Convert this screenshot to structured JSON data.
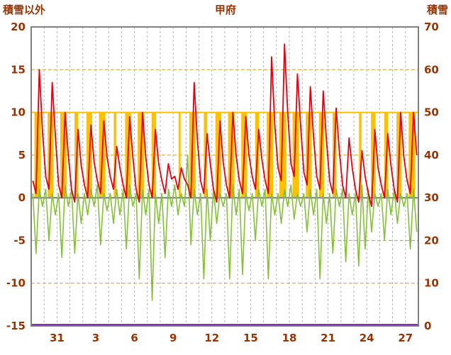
{
  "title": "甲府",
  "left_axis_label": "積雪以外",
  "right_axis_label": "積雪",
  "chart_data": {
    "type": "line",
    "title": "甲府",
    "left_axis": {
      "label": "積雪以外",
      "min": -15,
      "max": 20,
      "ticks": [
        20,
        15,
        10,
        5,
        0,
        -5,
        -10,
        -15
      ]
    },
    "right_axis": {
      "label": "積雪",
      "min": 0,
      "max": 70,
      "ticks": [
        70,
        60,
        50,
        40,
        30,
        20,
        10,
        0
      ]
    },
    "x_axis": {
      "days": 30,
      "tick_day_indices": [
        2,
        5,
        8,
        11,
        14,
        17,
        20,
        23,
        26,
        29
      ],
      "tick_labels": [
        "31",
        "3",
        "6",
        "9",
        "12",
        "15",
        "18",
        "21",
        "24",
        "27"
      ]
    },
    "grid": {
      "h_color": "#c9a227",
      "v_color": "#b3b3b3",
      "zero_color": "#8f8f8f",
      "border_color": "#808080",
      "text_color": "#993300",
      "ten_line_color": "#ffc000"
    },
    "series": {
      "red_line": {
        "color": "#e60012",
        "samples_per_day": 4,
        "values": [
          2,
          0.5,
          15,
          7.8,
          2.5,
          1,
          13.5,
          7.2,
          1.5,
          0,
          10,
          5,
          1,
          -0.5,
          8,
          3.8,
          1.5,
          0,
          8.5,
          4.2,
          2,
          0.5,
          9,
          4.8,
          2.5,
          1,
          6,
          3.5,
          1.5,
          0,
          9.5,
          4.8,
          1,
          -0.5,
          10,
          4.8,
          1.5,
          0,
          8,
          4,
          2,
          0.5,
          4,
          2.2,
          2.5,
          1,
          3.5,
          2.2,
          1.5,
          0,
          13.5,
          6.8,
          2,
          0.5,
          7.5,
          4,
          1,
          -0.5,
          9,
          4.2,
          1.5,
          0,
          10,
          5,
          2,
          0.5,
          9.5,
          5,
          2.5,
          1,
          8,
          4.5,
          2,
          0.5,
          16.5,
          8.5,
          3.5,
          2,
          18,
          10,
          4,
          2.5,
          14.5,
          8.5,
          3,
          1.5,
          13,
          7.2,
          2.5,
          1,
          12.5,
          6.8,
          2,
          0.5,
          10.5,
          5.5,
          1.5,
          0,
          7,
          3.5,
          1,
          -0.5,
          5.5,
          2.5,
          0.5,
          -1,
          8,
          3.5,
          1.5,
          0,
          7.5,
          3.8,
          1,
          -0.5,
          10,
          4.8,
          2,
          0.5,
          10,
          5
        ]
      },
      "green_line": {
        "color": "#85c037",
        "samples_per_day": 4,
        "values": [
          0.5,
          -6.5,
          1,
          -1,
          1,
          -5,
          0.5,
          -2,
          0.5,
          -7,
          1.5,
          -1,
          1,
          -6.5,
          0.5,
          -3,
          0.5,
          -2,
          1,
          -1,
          1.5,
          -5.5,
          0.5,
          -1.5,
          0.5,
          -3,
          1,
          -2,
          1,
          -6,
          1.5,
          -1,
          0.5,
          -9.5,
          1,
          -2,
          1,
          -12,
          0.5,
          -3,
          0.5,
          -7,
          1,
          -1,
          1.5,
          -2,
          0.5,
          -1,
          5,
          -5.5,
          1,
          -2,
          0.5,
          -9.5,
          1,
          -5,
          1,
          -3,
          0.5,
          -1,
          0.5,
          -9.5,
          1.5,
          -2,
          1,
          -9,
          0.5,
          -1.5,
          0.5,
          -5,
          1,
          -1,
          1,
          -9.5,
          0.5,
          -2,
          0.5,
          -3,
          1,
          -1,
          1.5,
          -2.5,
          0.5,
          -1,
          0.5,
          -4,
          1,
          -2,
          1,
          -9.5,
          0.5,
          -3,
          0.5,
          -6.5,
          1,
          -1,
          1,
          -7.5,
          0.5,
          -2,
          0.5,
          -8,
          1.5,
          -6,
          1,
          -4,
          0.5,
          -1,
          0.5,
          -5,
          1,
          -2,
          1,
          -3,
          0.5,
          -1,
          0.5,
          -6,
          1,
          -4
        ]
      },
      "orange_bars": {
        "color": "#ffc000",
        "bar_top": 10,
        "bar_bottom": 0,
        "daily_fraction": [
          0.5,
          0.45,
          0.5,
          0.3,
          0.45,
          0.5,
          0.2,
          0.45,
          0.5,
          0.35,
          0,
          0.15,
          0.5,
          0.25,
          0.45,
          0.5,
          0.45,
          0.3,
          0.5,
          0.55,
          0.5,
          0.45,
          0.4,
          0.3,
          0,
          0.2,
          0.35,
          0.3,
          0.4,
          0.5
        ]
      },
      "purple_line": {
        "color": "#6a1b9a",
        "axis": "right",
        "constant_value": 0
      }
    }
  }
}
